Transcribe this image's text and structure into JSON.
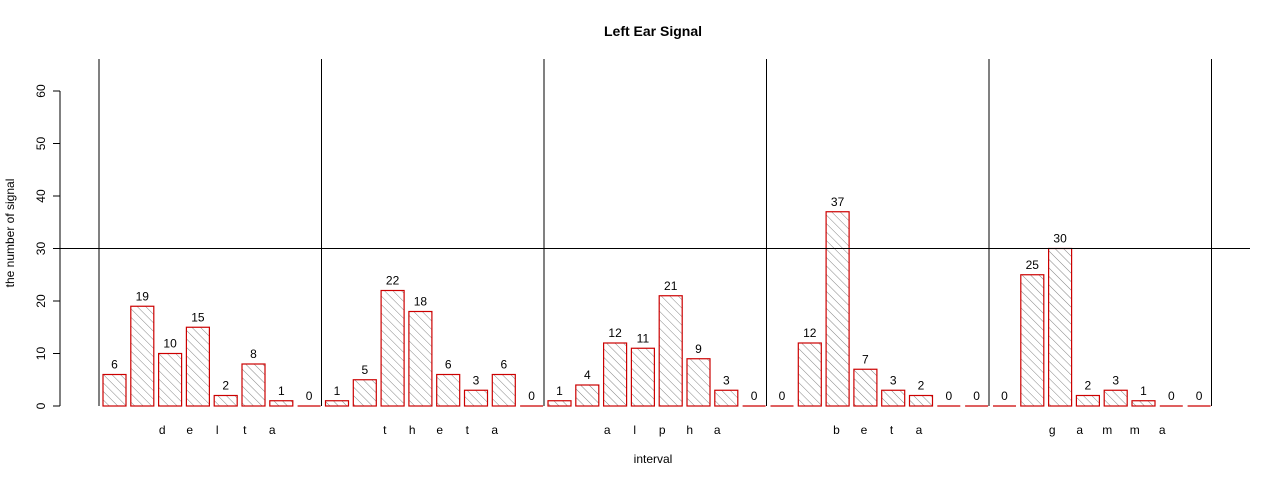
{
  "chart_data": {
    "type": "bar",
    "title": "Left Ear Signal",
    "xlabel": "interval",
    "ylabel": "the number of signal",
    "ylim": [
      0,
      60
    ],
    "y_ticks": [
      0,
      10,
      20,
      30,
      40,
      50,
      60
    ],
    "reference_line": 30,
    "bar_color": "#cc0000",
    "groups": [
      {
        "letters": [
          "d",
          "e",
          "l",
          "t",
          "a"
        ],
        "values": [
          6,
          19,
          10,
          15,
          2,
          8,
          1,
          0
        ]
      },
      {
        "letters": [
          "t",
          "h",
          "e",
          "t",
          "a"
        ],
        "values": [
          1,
          5,
          22,
          18,
          6,
          3,
          6,
          0
        ]
      },
      {
        "letters": [
          "a",
          "l",
          "p",
          "h",
          "a"
        ],
        "values": [
          1,
          4,
          12,
          11,
          21,
          9,
          3,
          0
        ]
      },
      {
        "letters": [
          "b",
          "e",
          "t",
          "a"
        ],
        "values": [
          0,
          12,
          37,
          7,
          3,
          2,
          0,
          0
        ]
      },
      {
        "letters": [
          "g",
          "a",
          "m",
          "m",
          "a"
        ],
        "values": [
          0,
          25,
          30,
          2,
          3,
          1,
          0,
          0
        ]
      }
    ]
  }
}
